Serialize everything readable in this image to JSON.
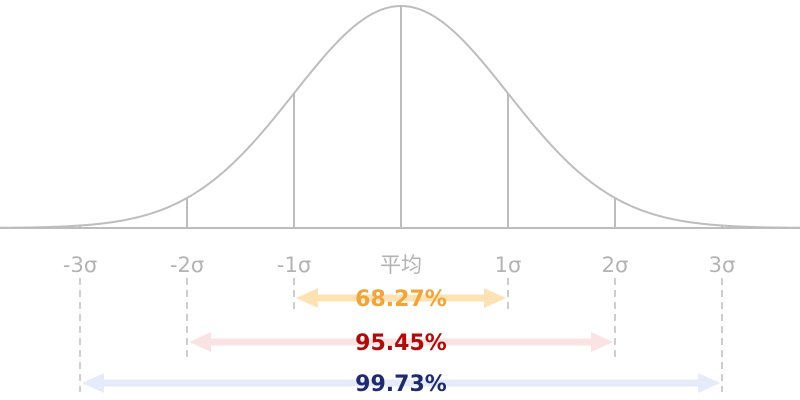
{
  "diagram": {
    "type": "normal-distribution",
    "tick_labels": [
      "-3σ",
      "-2σ",
      "-1σ",
      "平均",
      "1σ",
      "2σ",
      "3σ"
    ],
    "ranges": [
      {
        "sigma": 1,
        "label": "68.27%",
        "text_color": "#f0a43a",
        "arrow_color": "#fde3b4"
      },
      {
        "sigma": 2,
        "label": "95.45%",
        "text_color": "#b00a0a",
        "arrow_color": "#fbe3e3"
      },
      {
        "sigma": 3,
        "label": "99.73%",
        "text_color": "#1f2a6e",
        "arrow_color": "#e6ebfb"
      }
    ],
    "colors": {
      "curve": "#bdbdbd",
      "axis": "#bdbdbd",
      "lines": "#bdbdbd",
      "dashed": "#bdbdbd"
    }
  }
}
